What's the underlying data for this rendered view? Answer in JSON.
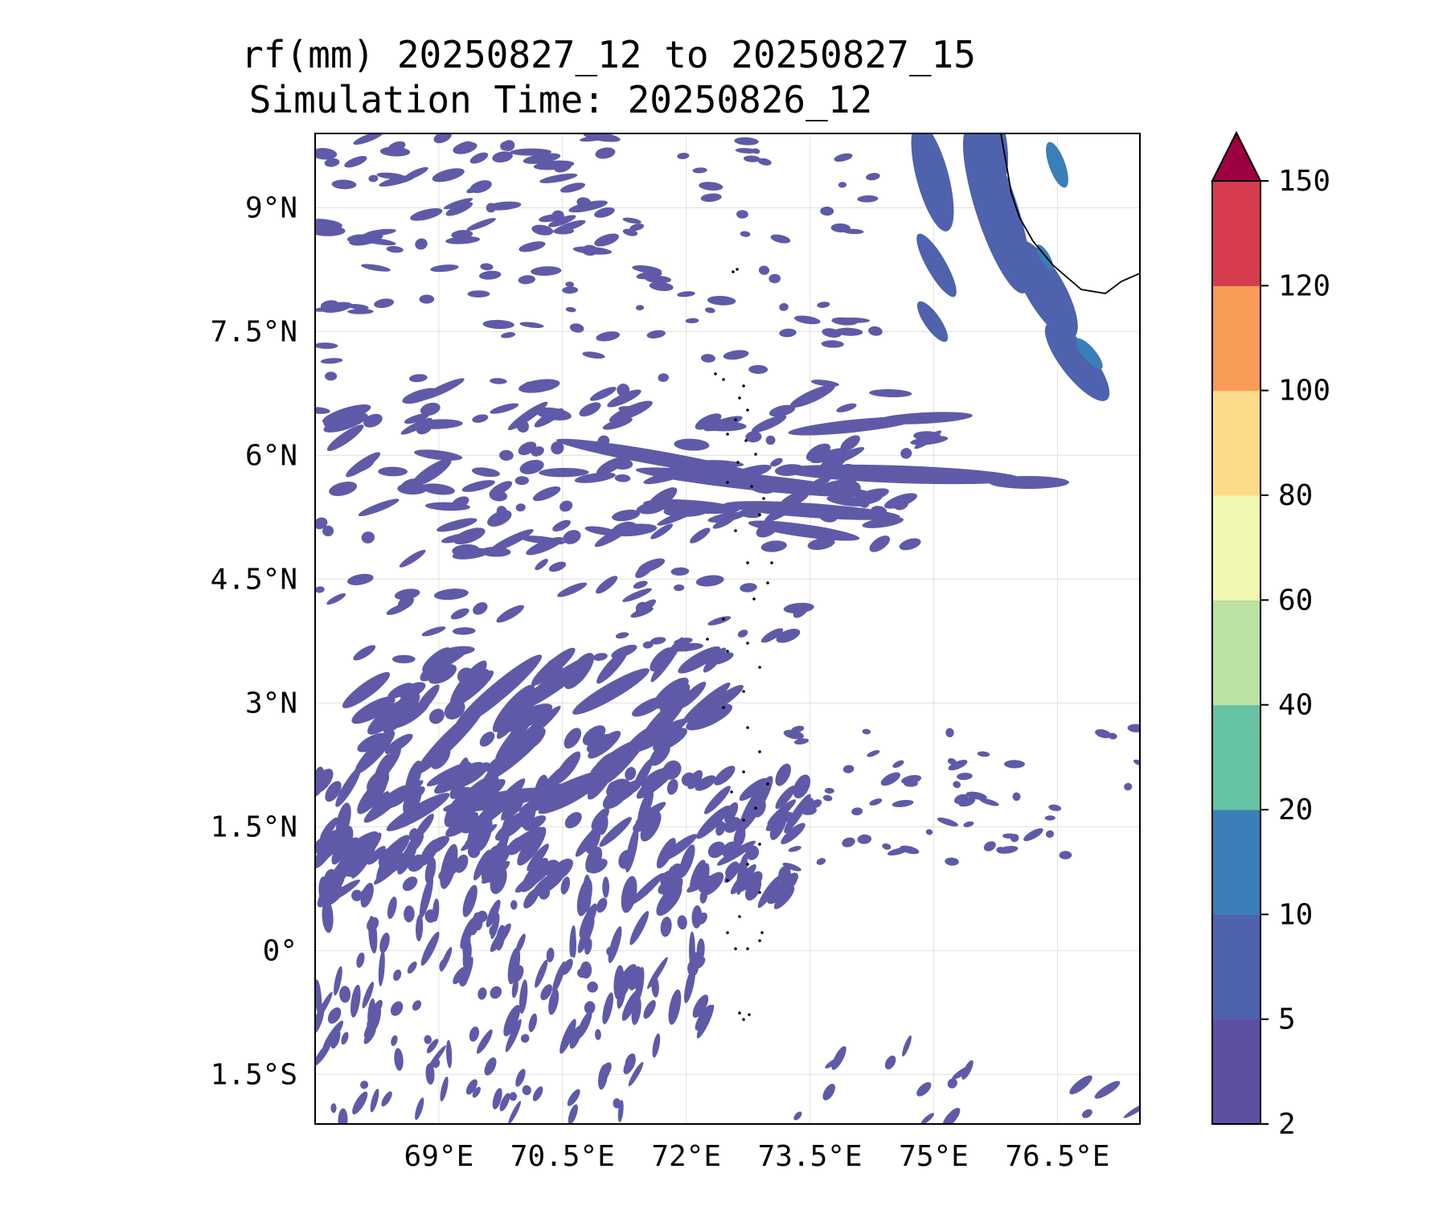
{
  "title": {
    "line1": "rf(mm) 20250827_12 to 20250827_15",
    "line2": "Simulation Time: 20250826_12"
  },
  "map": {
    "lon_range": [
      67.5,
      77.5
    ],
    "lat_range": [
      -2.1,
      9.9
    ],
    "lon_ticks": [
      69,
      70.5,
      72,
      73.5,
      75,
      76.5
    ],
    "lon_tick_labels": [
      "69°E",
      "70.5°E",
      "72°E",
      "73.5°E",
      "75°E",
      "76.5°E"
    ],
    "lat_ticks": [
      9,
      7.5,
      6,
      4.5,
      3,
      1.5,
      0,
      -1.5
    ],
    "lat_tick_labels": [
      "9°N",
      "7.5°N",
      "6°N",
      "4.5°N",
      "3°N",
      "1.5°N",
      "0°",
      "1.5°S"
    ],
    "gridlines": true
  },
  "colorbar": {
    "levels": [
      2,
      5,
      10,
      20,
      40,
      60,
      80,
      100,
      120,
      150
    ],
    "level_labels": [
      "2",
      "5",
      "10",
      "20",
      "40",
      "60",
      "80",
      "100",
      "120",
      "150"
    ],
    "colors": [
      "#5e4fa2",
      "#4f62ad",
      "#3a7fb8",
      "#66c2a5",
      "#bbe2a1",
      "#f2f7b0",
      "#fcdc8b",
      "#f89c57",
      "#d63b4e",
      "#9e0142"
    ],
    "extend": "max"
  },
  "features": {
    "rain_color": "#5f5aa8",
    "rain_color_heavy": "#4f62ad",
    "rain_color_peak": "#3a7fb8",
    "coastline_color": "#000000"
  }
}
